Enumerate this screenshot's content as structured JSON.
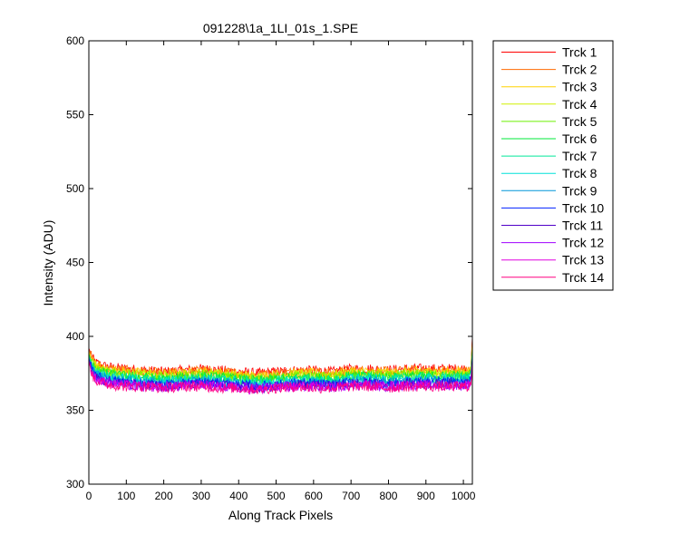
{
  "chart_data": {
    "type": "line",
    "title": "091228\\1a_1LI_01s_1.SPE",
    "xlabel": "Along Track Pixels",
    "ylabel": "Intensity (ADU)",
    "xlim": [
      0,
      1024
    ],
    "ylim": [
      300,
      600
    ],
    "xticks": [
      0,
      100,
      200,
      300,
      400,
      500,
      600,
      700,
      800,
      900,
      1000
    ],
    "yticks": [
      300,
      350,
      400,
      450,
      500,
      550,
      600
    ],
    "grid": false,
    "legend_position": "outside-right",
    "x": [
      0,
      10,
      20,
      40,
      60,
      100,
      150,
      200,
      250,
      300,
      350,
      400,
      450,
      500,
      550,
      600,
      650,
      700,
      750,
      800,
      850,
      900,
      950,
      1000,
      1010,
      1020,
      1024
    ],
    "series": [
      {
        "name": "Trck 1",
        "color": "#ff0000",
        "values": [
          392,
          385,
          382,
          380,
          379,
          378,
          377,
          376,
          377,
          378,
          377,
          376,
          375,
          376,
          377,
          377,
          376,
          378,
          378,
          377,
          378,
          378,
          378,
          378,
          378,
          379,
          400
        ]
      },
      {
        "name": "Trck 2",
        "color": "#ff6a00",
        "values": [
          391,
          384,
          381,
          379,
          378,
          377,
          376,
          375,
          376,
          377,
          376,
          375,
          374,
          375,
          376,
          376,
          375,
          377,
          377,
          376,
          377,
          377,
          377,
          377,
          377,
          378,
          398
        ]
      },
      {
        "name": "Trck 3",
        "color": "#ffd200",
        "values": [
          390,
          383,
          380,
          378,
          377,
          376,
          375,
          374,
          375,
          376,
          375,
          374,
          373,
          374,
          375,
          375,
          374,
          376,
          376,
          375,
          376,
          376,
          376,
          376,
          376,
          377,
          396
        ]
      },
      {
        "name": "Trck 4",
        "color": "#d0f000",
        "values": [
          389,
          382,
          379,
          377,
          376,
          375,
          374,
          373,
          374,
          375,
          374,
          373,
          372,
          373,
          374,
          374,
          373,
          375,
          375,
          374,
          375,
          375,
          375,
          375,
          375,
          376,
          394
        ]
      },
      {
        "name": "Trck 5",
        "color": "#6cf000",
        "values": [
          388,
          381,
          378,
          376,
          375,
          374,
          373,
          372,
          373,
          374,
          373,
          372,
          371,
          372,
          373,
          373,
          372,
          374,
          374,
          373,
          374,
          374,
          374,
          374,
          374,
          375,
          392
        ]
      },
      {
        "name": "Trck 6",
        "color": "#00e83a",
        "values": [
          388,
          380,
          377,
          375,
          374,
          373,
          372,
          371,
          372,
          373,
          372,
          371,
          370,
          371,
          372,
          372,
          371,
          373,
          373,
          372,
          373,
          373,
          373,
          373,
          373,
          374,
          391
        ]
      },
      {
        "name": "Trck 7",
        "color": "#00e89a",
        "values": [
          387,
          379,
          376,
          374,
          373,
          372,
          371,
          370,
          371,
          372,
          371,
          370,
          369,
          370,
          371,
          371,
          370,
          372,
          372,
          371,
          372,
          372,
          372,
          372,
          372,
          373,
          390
        ]
      },
      {
        "name": "Trck 8",
        "color": "#00e0d8",
        "values": [
          386,
          378,
          375,
          373,
          372,
          371,
          370,
          369,
          370,
          371,
          370,
          369,
          368,
          369,
          370,
          370,
          369,
          371,
          371,
          370,
          371,
          371,
          371,
          371,
          371,
          372,
          388
        ]
      },
      {
        "name": "Trck 9",
        "color": "#0096d8",
        "values": [
          386,
          377,
          374,
          372,
          371,
          370,
          369,
          368,
          369,
          370,
          369,
          368,
          367,
          368,
          369,
          369,
          368,
          370,
          370,
          369,
          370,
          370,
          370,
          370,
          370,
          371,
          387
        ]
      },
      {
        "name": "Trck 10",
        "color": "#0020ff",
        "values": [
          385,
          376,
          373,
          371,
          370,
          369,
          368,
          367,
          368,
          369,
          368,
          367,
          366,
          367,
          368,
          368,
          367,
          369,
          369,
          368,
          369,
          369,
          369,
          369,
          369,
          370,
          386
        ]
      },
      {
        "name": "Trck 11",
        "color": "#5000c8",
        "values": [
          384,
          375,
          372,
          370,
          369,
          368,
          367,
          366,
          367,
          368,
          367,
          366,
          365,
          366,
          367,
          367,
          366,
          368,
          368,
          367,
          368,
          368,
          368,
          368,
          368,
          369,
          384
        ]
      },
      {
        "name": "Trck 12",
        "color": "#a000ff",
        "values": [
          384,
          374,
          371,
          369,
          368,
          367,
          366,
          366,
          367,
          367,
          366,
          366,
          365,
          366,
          366,
          366,
          366,
          367,
          367,
          366,
          367,
          367,
          367,
          367,
          367,
          368,
          383
        ]
      },
      {
        "name": "Trck 13",
        "color": "#e000e0",
        "values": [
          383,
          374,
          371,
          369,
          368,
          367,
          366,
          366,
          366,
          367,
          366,
          365,
          364,
          365,
          366,
          366,
          365,
          367,
          367,
          366,
          367,
          367,
          367,
          367,
          367,
          368,
          382
        ]
      },
      {
        "name": "Trck 14",
        "color": "#ff0080",
        "values": [
          383,
          373,
          370,
          368,
          367,
          366,
          366,
          365,
          366,
          366,
          365,
          365,
          364,
          365,
          366,
          365,
          365,
          366,
          366,
          365,
          366,
          366,
          366,
          366,
          366,
          367,
          380
        ]
      }
    ]
  }
}
